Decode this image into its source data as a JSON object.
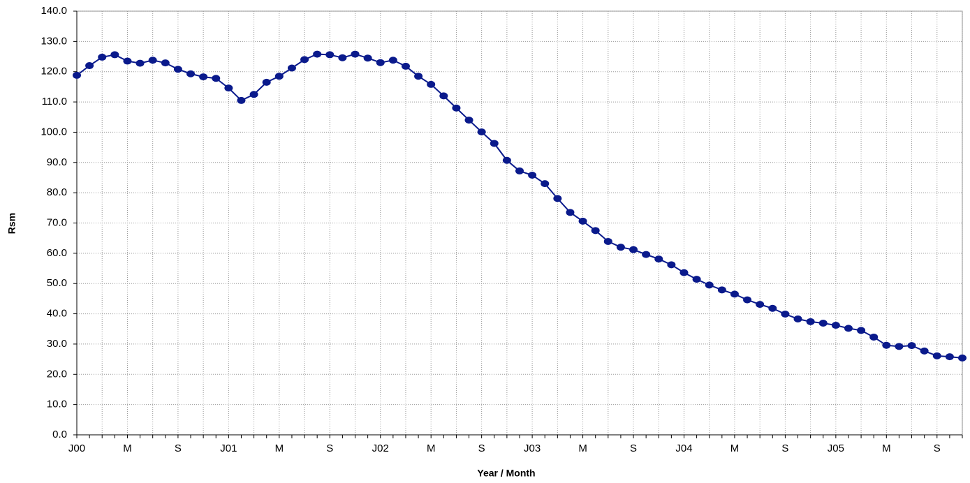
{
  "chart_data": {
    "type": "line",
    "x_label": "Year / Month",
    "y_label": "Rsm",
    "categories": [
      "J00",
      null,
      null,
      null,
      "M",
      null,
      null,
      null,
      "S",
      null,
      null,
      null,
      "J01",
      null,
      null,
      null,
      "M",
      null,
      null,
      null,
      "S",
      null,
      null,
      null,
      "J02",
      null,
      null,
      null,
      "M",
      null,
      null,
      null,
      "S",
      null,
      null,
      null,
      "J03",
      null,
      null,
      null,
      "M",
      null,
      null,
      null,
      "S",
      null,
      null,
      null,
      "J04",
      null,
      null,
      null,
      "M",
      null,
      null,
      null,
      "S",
      null,
      null,
      null,
      "J05",
      null,
      null,
      null,
      "M",
      null,
      null,
      null,
      "S",
      null,
      null
    ],
    "series": [
      {
        "color": "#0a1a8c",
        "values": [
          118.8,
          122.0,
          124.8,
          125.6,
          123.5,
          122.8,
          123.8,
          122.9,
          120.8,
          119.3,
          118.3,
          117.8,
          114.6,
          110.5,
          112.5,
          116.5,
          118.5,
          121.2,
          124.0,
          125.8,
          125.6,
          124.6,
          125.8,
          124.5,
          123.0,
          123.8,
          121.8,
          118.5,
          115.8,
          112.0,
          108.0,
          104.0,
          100.1,
          96.3,
          90.7,
          87.2,
          85.8,
          83.0,
          78.1,
          73.5,
          70.6,
          67.5,
          63.9,
          62.0,
          61.2,
          59.6,
          58.1,
          56.2,
          53.6,
          51.4,
          49.5,
          47.9,
          46.5,
          44.6,
          43.1,
          41.8,
          39.9,
          38.3,
          37.4,
          36.9,
          36.2,
          35.2,
          34.5,
          32.3,
          29.6,
          29.2,
          29.5,
          27.7,
          26.1,
          25.8,
          25.4
        ]
      }
    ],
    "ylim": [
      0,
      140
    ],
    "yticks": [
      {
        "value": 0,
        "label": "0.0"
      },
      {
        "value": 10,
        "label": "10.0"
      },
      {
        "value": 20,
        "label": "20.0"
      },
      {
        "value": 30,
        "label": "30.0"
      },
      {
        "value": 40,
        "label": "40.0"
      },
      {
        "value": 50,
        "label": "50.0"
      },
      {
        "value": 60,
        "label": "60.0"
      },
      {
        "value": 70,
        "label": "70.0"
      },
      {
        "value": 80,
        "label": "80.0"
      },
      {
        "value": 90,
        "label": "90.0"
      },
      {
        "value": 100,
        "label": "100.0"
      },
      {
        "value": 110,
        "label": "110.0"
      },
      {
        "value": 120,
        "label": "120.0"
      },
      {
        "value": 130,
        "label": "130.0"
      },
      {
        "value": 140,
        "label": "140.0"
      }
    ],
    "grid": true
  }
}
